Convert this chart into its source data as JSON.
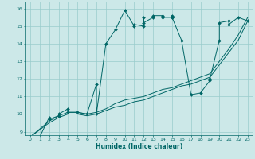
{
  "xlabel": "Humidex (Indice chaleur)",
  "xlim": [
    -0.5,
    23.5
  ],
  "ylim": [
    8.8,
    16.4
  ],
  "xticks": [
    0,
    1,
    2,
    3,
    4,
    5,
    6,
    7,
    8,
    9,
    10,
    11,
    12,
    13,
    14,
    15,
    16,
    17,
    18,
    19,
    20,
    21,
    22,
    23
  ],
  "yticks": [
    9,
    10,
    11,
    12,
    13,
    14,
    15,
    16
  ],
  "background_color": "#cce8e8",
  "grid_color": "#99cccc",
  "line_color": "#006666",
  "lines": [
    {
      "x": [
        0,
        1,
        2,
        2,
        3,
        3,
        4,
        4,
        5,
        6,
        7,
        7,
        8,
        9,
        10,
        11,
        11,
        12,
        12,
        12,
        13,
        13,
        14,
        14,
        15,
        15,
        15,
        16,
        17,
        18,
        19,
        19,
        20,
        20,
        21,
        21,
        22,
        23
      ],
      "y": [
        8.7,
        8.7,
        9.8,
        9.7,
        9.9,
        10.0,
        10.3,
        10.1,
        10.1,
        10.0,
        11.7,
        10.0,
        14.0,
        14.8,
        15.9,
        15.0,
        15.1,
        15.0,
        15.5,
        15.2,
        15.5,
        15.6,
        15.6,
        15.5,
        15.5,
        15.6,
        15.5,
        14.2,
        11.1,
        11.2,
        11.9,
        12.0,
        14.2,
        15.2,
        15.3,
        15.1,
        15.5,
        15.3
      ],
      "marker": "D",
      "markersize": 2.0
    },
    {
      "x": [
        0,
        2,
        3,
        4,
        5,
        6,
        7,
        8,
        9,
        10,
        11,
        12,
        13,
        14,
        15,
        16,
        17,
        18,
        19,
        20,
        21,
        22,
        23
      ],
      "y": [
        8.7,
        9.5,
        9.8,
        10.0,
        10.0,
        9.9,
        10.0,
        10.2,
        10.4,
        10.5,
        10.7,
        10.8,
        11.0,
        11.2,
        11.4,
        11.6,
        11.7,
        11.9,
        12.1,
        12.8,
        13.5,
        14.2,
        15.3
      ],
      "marker": null,
      "markersize": 0
    },
    {
      "x": [
        0,
        2,
        3,
        4,
        5,
        6,
        7,
        8,
        9,
        10,
        11,
        12,
        13,
        14,
        15,
        16,
        17,
        18,
        19,
        20,
        21,
        22,
        23
      ],
      "y": [
        8.7,
        9.6,
        9.9,
        10.1,
        10.1,
        10.0,
        10.1,
        10.3,
        10.6,
        10.8,
        10.9,
        11.0,
        11.2,
        11.4,
        11.5,
        11.7,
        11.9,
        12.1,
        12.3,
        13.0,
        13.7,
        14.5,
        15.5
      ],
      "marker": null,
      "markersize": 0
    }
  ]
}
